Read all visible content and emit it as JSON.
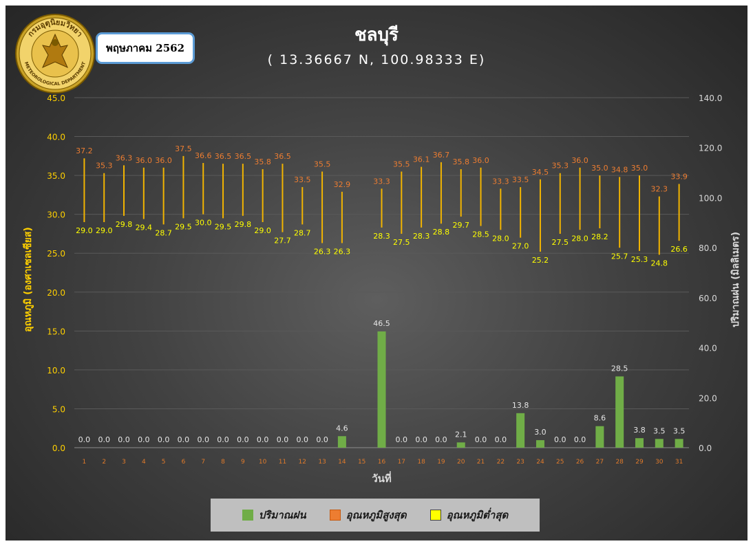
{
  "header": {
    "month_label": "พฤษภาคม 2562",
    "title": "ชลบุรี",
    "subtitle": "( 13.36667 N, 100.98333 E)",
    "logo": {
      "text_top": "กรมอุตุนิยมวิทยา",
      "text_bottom": "METEOROLOGICAL DEPARTMENT"
    }
  },
  "legend": {
    "items": [
      {
        "label": "ปริมาณฝน",
        "color": "#70ad47"
      },
      {
        "label": "อุณหภูมิสูงสุด",
        "color": "#ed7d31"
      },
      {
        "label": "อุณหภูมิต่ำสุด",
        "color": "#ffff00"
      }
    ]
  },
  "chart_data": {
    "type": "bar",
    "xlabel": "วันที่",
    "ylabel_left": "อุณหภูมิ (องศาเซลเซียส)",
    "ylabel_right": "ปริมาณฝน (มิลลิเมตร)",
    "ylim_left": [
      0,
      45
    ],
    "yticks_left": [
      "0.0",
      "5.0",
      "10.0",
      "15.0",
      "20.0",
      "25.0",
      "30.0",
      "35.0",
      "40.0",
      "45.0"
    ],
    "ylim_right": [
      0,
      140
    ],
    "yticks_right": [
      "0.0",
      "20.0",
      "40.0",
      "60.0",
      "80.0",
      "100.0",
      "120.0",
      "140.0"
    ],
    "grid": true,
    "legend_position": "bottom",
    "categories": [
      "1",
      "2",
      "3",
      "4",
      "5",
      "6",
      "7",
      "8",
      "9",
      "10",
      "11",
      "12",
      "13",
      "14",
      "15",
      "16",
      "17",
      "18",
      "19",
      "20",
      "21",
      "22",
      "23",
      "24",
      "25",
      "26",
      "27",
      "28",
      "29",
      "30",
      "31"
    ],
    "series": [
      {
        "name": "ปริมาณฝน",
        "axis": "right",
        "color": "#70ad47",
        "values": [
          0.0,
          0.0,
          0.0,
          0.0,
          0.0,
          0.0,
          0.0,
          0.0,
          0.0,
          0.0,
          0.0,
          0.0,
          0.0,
          4.6,
          null,
          46.5,
          0.0,
          0.0,
          0.0,
          2.1,
          0.0,
          0.0,
          13.8,
          3.0,
          0.0,
          0.0,
          8.6,
          28.5,
          3.8,
          3.5,
          3.5
        ],
        "labels": [
          "0.0",
          "0.0",
          "0.0",
          "0.0",
          "0.0",
          "0.0",
          "0.0",
          "0.0",
          "0.0",
          "0.0",
          "0.0",
          "0.0",
          "0.0",
          "4.6",
          "",
          "46.5",
          "0.0",
          "0.0",
          "0.0",
          "2.1",
          "0.0",
          "0.0",
          "13.8",
          "3.0",
          "0.0",
          "0.0",
          "8.6",
          "28.5",
          "3.8",
          "3.5",
          "3.5"
        ]
      },
      {
        "name": "อุณหภูมิสูงสุด",
        "axis": "left",
        "color": "#ed7d31",
        "values": [
          37.2,
          35.3,
          36.3,
          36.0,
          36.0,
          37.5,
          36.6,
          36.5,
          36.5,
          35.8,
          36.5,
          33.5,
          35.5,
          32.9,
          null,
          33.3,
          35.5,
          36.1,
          36.7,
          35.8,
          36.0,
          33.3,
          33.5,
          34.5,
          35.3,
          36.0,
          35.0,
          34.8,
          35.0,
          32.3,
          33.9
        ],
        "labels": [
          "37.2",
          "35.3",
          "36.3",
          "36.0",
          "36.0",
          "37.5",
          "36.6",
          "36.5",
          "36.5",
          "35.8",
          "36.5",
          "33.5",
          "35.5",
          "32.9",
          "",
          "33.3",
          "35.5",
          "36.1",
          "36.7",
          "35.8",
          "36.0",
          "33.3",
          "33.5",
          "34.5",
          "35.3",
          "36.0",
          "35.0",
          "34.8",
          "35.0",
          "32.3",
          "33.9"
        ]
      },
      {
        "name": "อุณหภูมิต่ำสุด",
        "axis": "left",
        "color": "#ffff00",
        "values": [
          29.0,
          29.0,
          29.8,
          29.4,
          28.7,
          29.5,
          30.0,
          29.5,
          29.8,
          29.0,
          27.7,
          28.7,
          26.3,
          26.3,
          null,
          28.3,
          27.5,
          28.3,
          28.8,
          29.7,
          28.5,
          28.0,
          27.0,
          25.2,
          27.5,
          28.0,
          28.2,
          25.7,
          25.3,
          24.8,
          26.6
        ],
        "labels": [
          "29.0",
          "29.0",
          "29.8",
          "29.4",
          "28.7",
          "29.5",
          "30.0",
          "29.5",
          "29.8",
          "29.0",
          "27.7",
          "28.7",
          "26.3",
          "26.3",
          "",
          "28.3",
          "27.5",
          "28.3",
          "28.8",
          "29.7",
          "28.5",
          "28.0",
          "27.0",
          "25.2",
          "27.5",
          "28.0",
          "28.2",
          "25.7",
          "25.3",
          "24.8",
          "26.6"
        ]
      }
    ]
  },
  "colors": {
    "range_line": "#f2b400",
    "axis_left_text": "#ffd000",
    "axis_right_text": "#d9d9d9",
    "category_text": "#e07a2a"
  }
}
